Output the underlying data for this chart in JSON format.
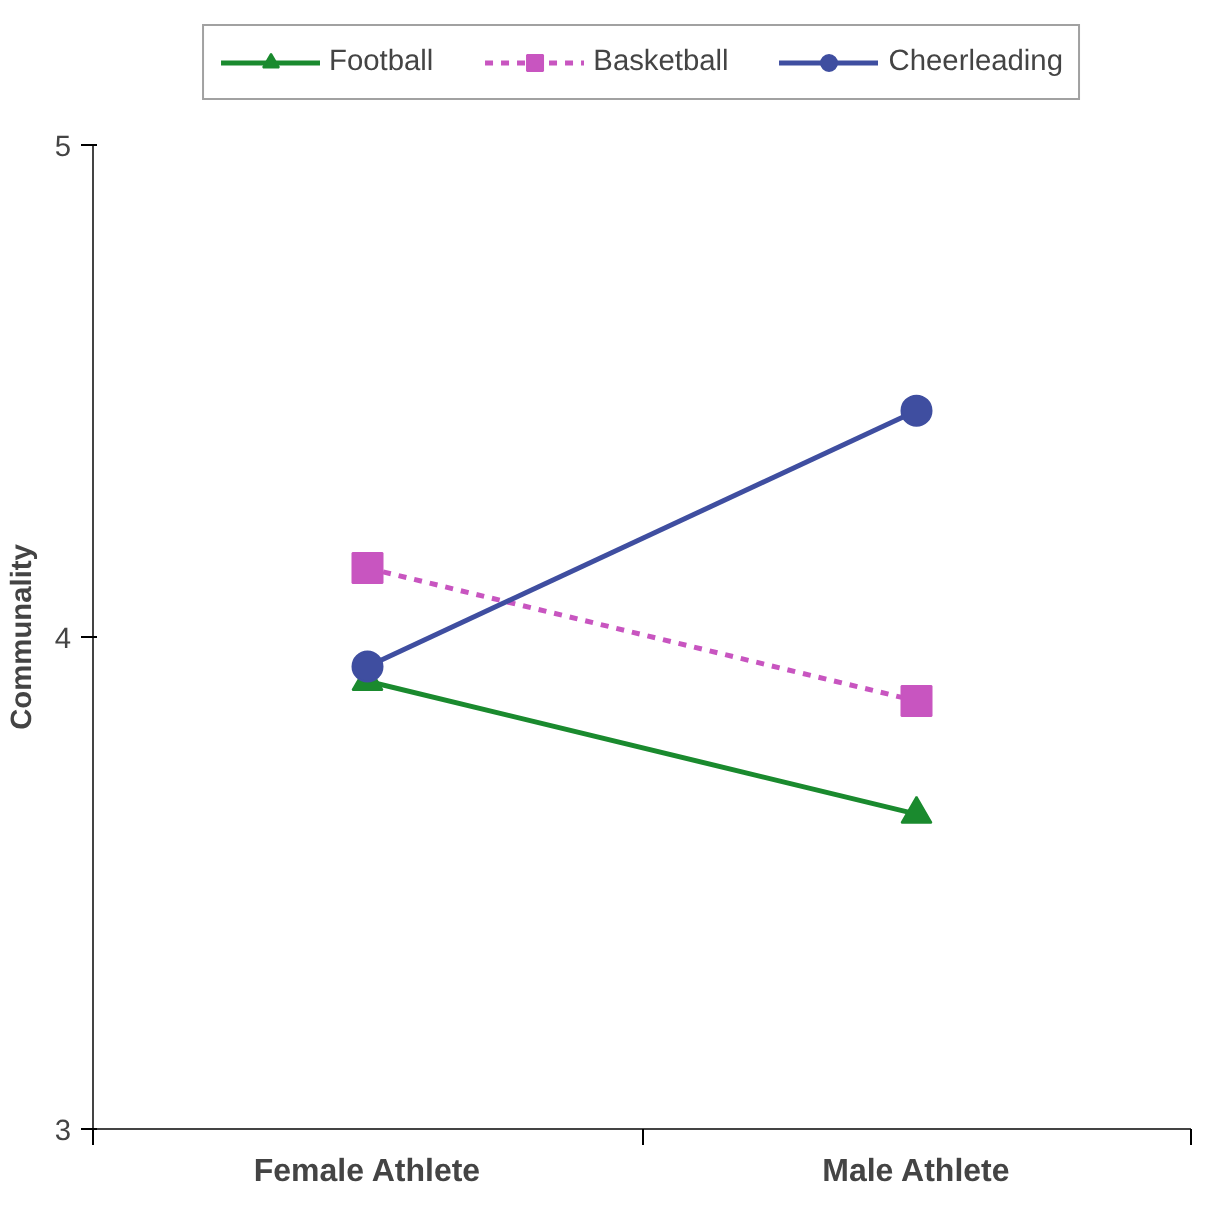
{
  "chart_data": {
    "type": "line",
    "ylabel": "Communality",
    "categories": [
      "Female Athlete",
      "Male Athlete"
    ],
    "ylim": [
      3,
      5
    ],
    "yticks": [
      3,
      4,
      5
    ],
    "grid": false,
    "legend": "top",
    "series": [
      {
        "name": "Football",
        "color": "#1a8a2e",
        "values": [
          3.91,
          3.64
        ],
        "marker": "triangle",
        "line_style": "solid"
      },
      {
        "name": "Basketball",
        "color": "#c855c0",
        "values": [
          4.14,
          3.87
        ],
        "marker": "square",
        "line_style": "dashed"
      },
      {
        "name": "Cheerleading",
        "color": "#3f4ea0",
        "values": [
          3.94,
          4.46
        ],
        "marker": "circle",
        "line_style": "solid"
      }
    ]
  }
}
